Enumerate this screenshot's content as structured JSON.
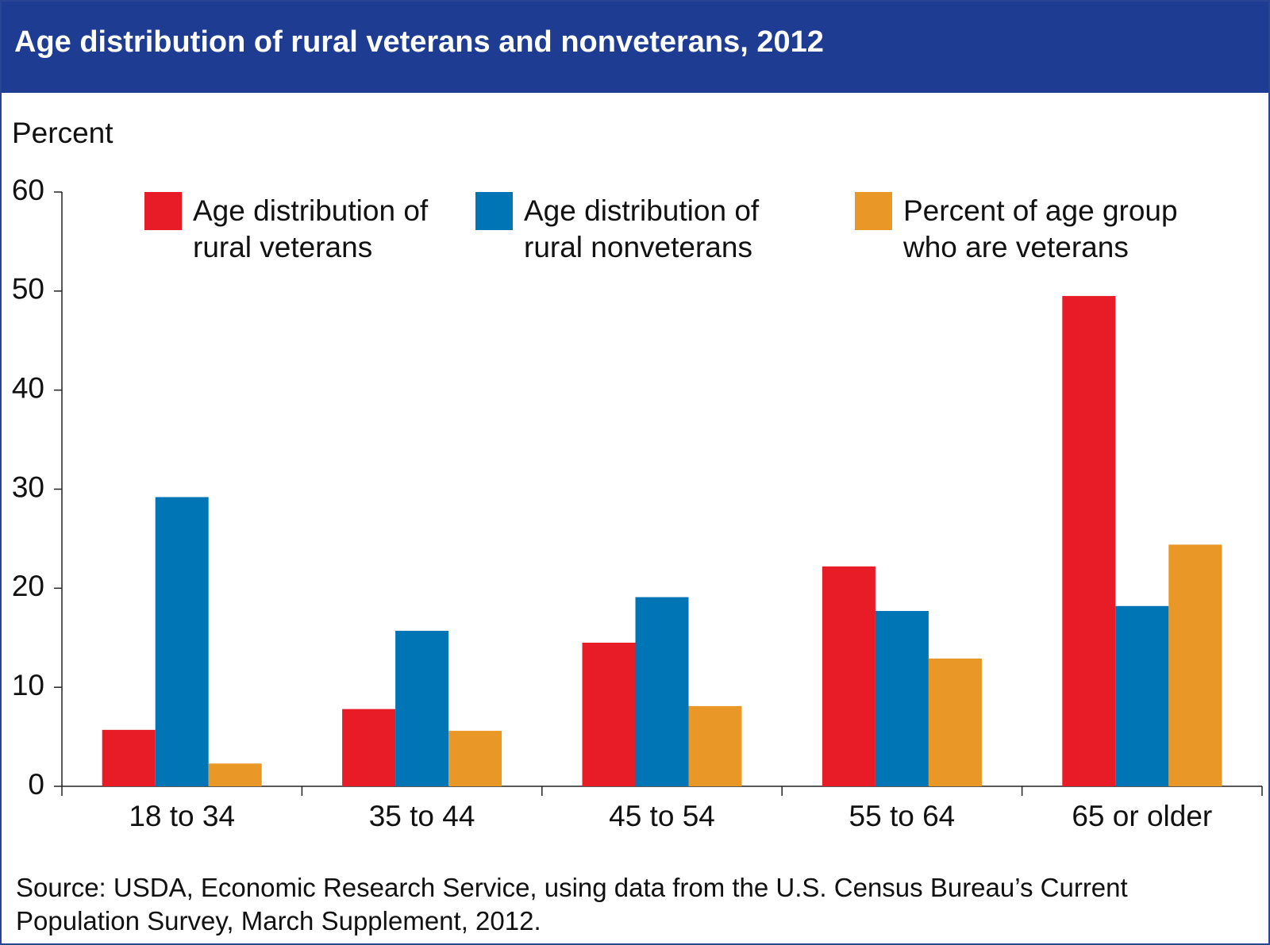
{
  "chart_data": {
    "type": "bar",
    "title": "Age distribution of rural veterans and nonveterans, 2012",
    "y_label": "Percent",
    "source": "Source:  USDA, Economic Research Service, using data from the U.S. Census Bureau’s Current Population Survey, March Supplement, 2012.",
    "categories": [
      "18 to 34",
      "35 to 44",
      "45 to 54",
      "55 to 64",
      "65 or older"
    ],
    "series": [
      {
        "name": "Age distribution of rural veterans",
        "color": "#e81c27",
        "values": [
          5.7,
          7.8,
          14.5,
          22.2,
          49.5
        ]
      },
      {
        "name": "Age distribution of rural nonveterans",
        "color": "#0075b5",
        "values": [
          29.2,
          15.7,
          19.1,
          17.7,
          18.2
        ]
      },
      {
        "name": "Percent of age group who are veterans",
        "color": "#e99726",
        "values": [
          2.3,
          5.6,
          8.1,
          12.9,
          24.4
        ]
      }
    ],
    "ylim": [
      0,
      60
    ],
    "yticks": [
      0,
      10,
      20,
      30,
      40,
      50,
      60
    ],
    "grid": false
  }
}
